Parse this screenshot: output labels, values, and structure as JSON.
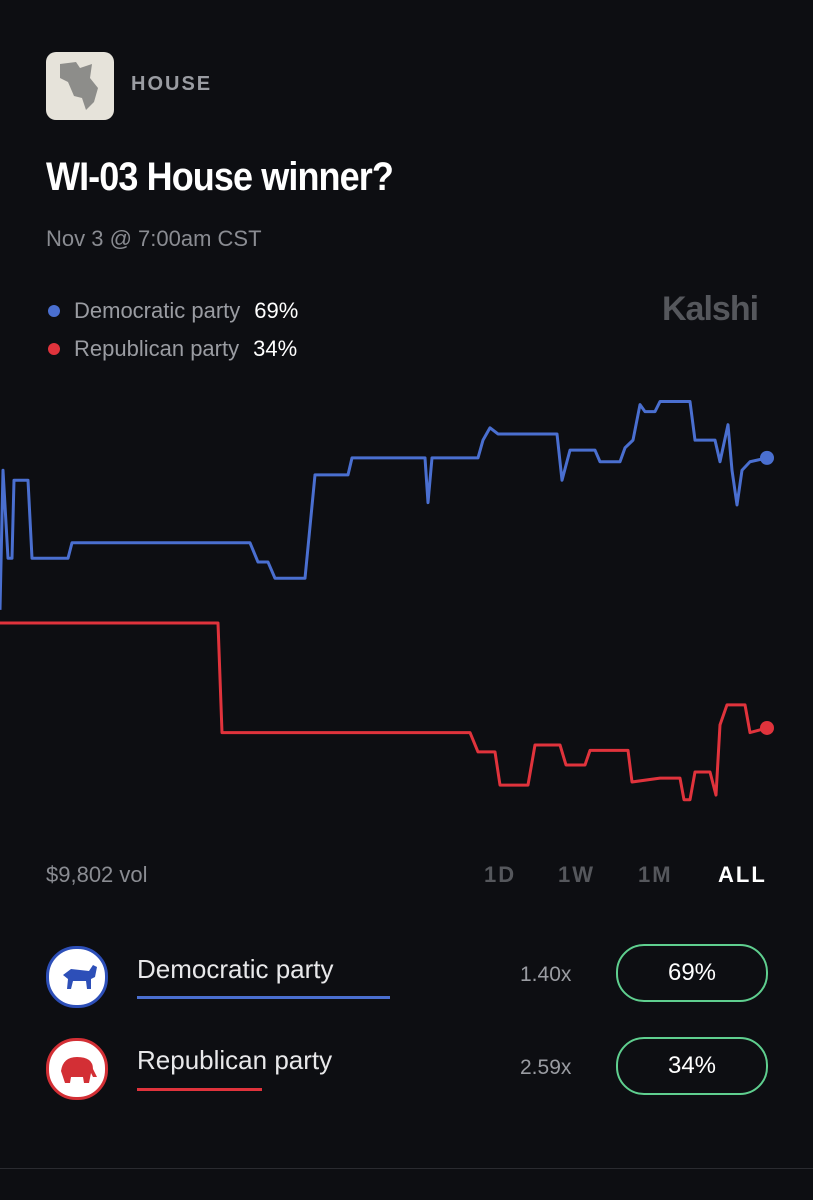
{
  "header": {
    "category": "HOUSE",
    "title": "WI-03 House winner?",
    "date": "Nov 3 @ 7:00am CST",
    "brand": "Kalshi"
  },
  "legend": [
    {
      "value": "69%"
    },
    {
      "value": "34%"
    }
  ],
  "chart_data": {
    "type": "line",
    "xlim": [
      0,
      767
    ],
    "ylim": [
      20,
      80
    ],
    "series": [
      {
        "name": "Democratic party",
        "color": "#4a6fd0",
        "x": [
          0,
          3,
          8,
          12,
          14,
          28,
          32,
          68,
          72,
          250,
          258,
          268,
          275,
          305,
          315,
          348,
          352,
          425,
          428,
          432,
          478,
          483,
          490,
          498,
          557,
          562,
          570,
          595,
          600,
          620,
          625,
          633,
          640,
          645,
          655,
          660,
          690,
          695,
          715,
          720,
          728,
          732,
          737,
          742,
          750,
          767
        ],
        "values": [
          49.3,
          67.4,
          56,
          56,
          66.1,
          66.1,
          56,
          56,
          58,
          58,
          55.5,
          55.5,
          53.4,
          53.4,
          66.8,
          66.8,
          69,
          69,
          63.2,
          69,
          69,
          71.3,
          72.9,
          72.1,
          72.1,
          66.1,
          70,
          70,
          68.5,
          68.5,
          70.3,
          71.3,
          75.9,
          75,
          75,
          76.3,
          76.3,
          71.3,
          71.3,
          68.5,
          73.3,
          67.4,
          62.9,
          67.4,
          68.5,
          69
        ]
      },
      {
        "name": "Republican party",
        "color": "#e0333c",
        "x": [
          0,
          218,
          222,
          470,
          478,
          495,
          500,
          528,
          535,
          560,
          566,
          585,
          590,
          628,
          632,
          660,
          680,
          684,
          690,
          695,
          710,
          716,
          720,
          727,
          745,
          750,
          767
        ],
        "values": [
          47.6,
          47.6,
          33.4,
          33.4,
          30.9,
          30.9,
          26.6,
          26.6,
          31.8,
          31.8,
          29.2,
          29.2,
          31.1,
          31.1,
          27,
          27.5,
          27.5,
          24.7,
          24.7,
          28.3,
          28.3,
          25.3,
          34.4,
          37,
          37,
          33.4,
          34
        ]
      }
    ]
  },
  "volume": "$9,802 vol",
  "ranges": [
    "1D",
    "1W",
    "1M",
    "ALL"
  ],
  "outcomes": [
    {
      "multiplier": "1.40x",
      "chance": "69%"
    },
    {
      "multiplier": "2.59x",
      "chance": "34%"
    }
  ]
}
